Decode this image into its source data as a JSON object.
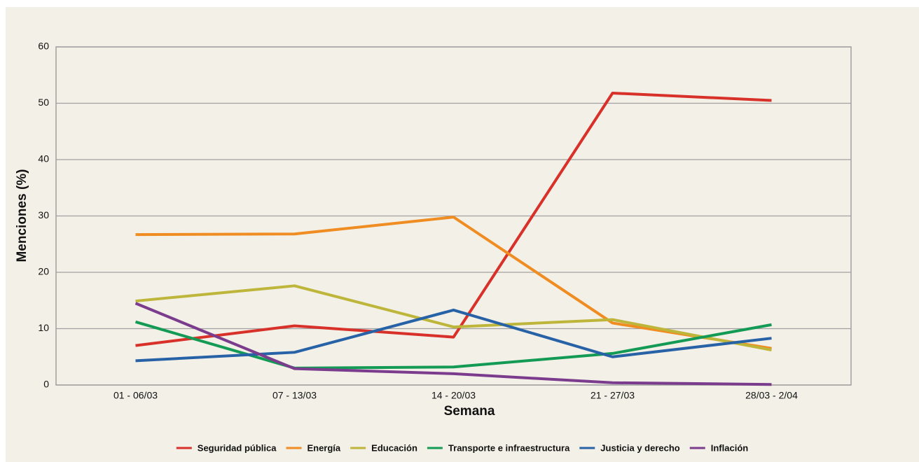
{
  "chart_data": {
    "type": "line",
    "x_label": "Semana",
    "y_label": "Menciones (%)",
    "categories": [
      "01 - 06/03",
      "07 - 13/03",
      "14 - 20/03",
      "21 - 27/03",
      "28/03 - 2/04"
    ],
    "series": [
      {
        "name": "Seguridad pública",
        "color": "#d7312a",
        "values": [
          7,
          10.5,
          8.5,
          51.8,
          50.5
        ]
      },
      {
        "name": "Energía",
        "color": "#ef8c22",
        "values": [
          26.7,
          26.8,
          29.8,
          11,
          6.5
        ]
      },
      {
        "name": "Educación",
        "color": "#bdb63a",
        "values": [
          14.9,
          17.6,
          10.3,
          11.6,
          6.2
        ]
      },
      {
        "name": "Transporte e infraestructura",
        "color": "#139a55",
        "values": [
          11.2,
          3,
          3.2,
          5.6,
          10.7
        ]
      },
      {
        "name": "Justicia y derecho",
        "color": "#2762a7",
        "values": [
          4.3,
          5.8,
          13.3,
          5,
          8.3
        ]
      },
      {
        "name": "Inflación",
        "color": "#7b3c8e",
        "values": [
          14.5,
          2.9,
          2,
          0.4,
          0.1
        ]
      }
    ],
    "ylim": [
      0,
      60
    ],
    "yticks": [
      0,
      10,
      20,
      30,
      40,
      50,
      60
    ],
    "grid": true,
    "legend": "bottom"
  }
}
